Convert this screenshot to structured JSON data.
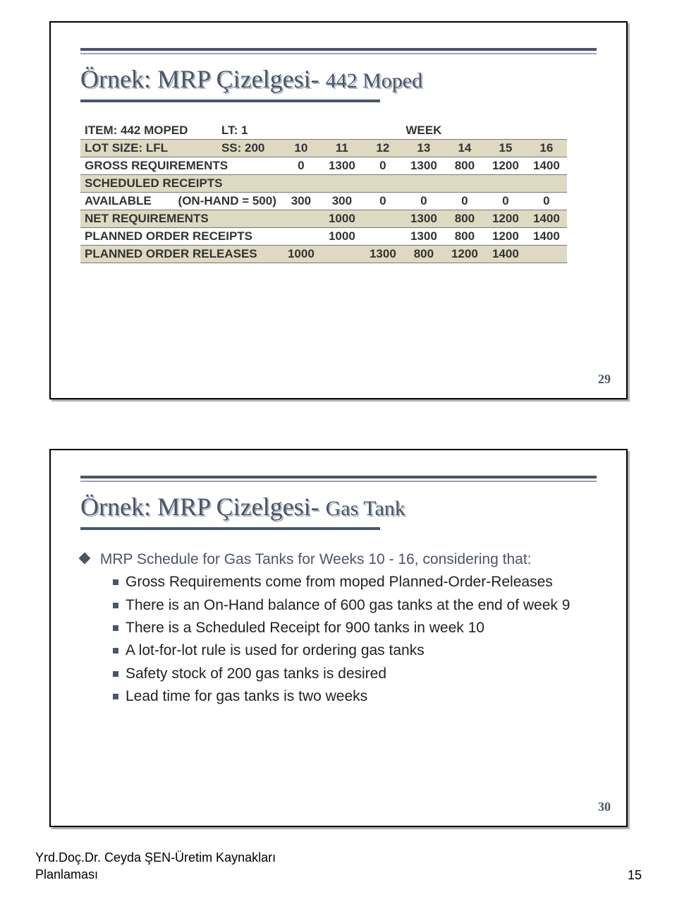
{
  "page": {
    "footer_author": "Yrd.Doç.Dr. Ceyda ŞEN-Üretim Kaynakları",
    "footer_line2": "Planlaması",
    "page_number": "15"
  },
  "slide1": {
    "title_main": "Örnek: MRP Çizelgesi-",
    "title_sub": "442 Moped",
    "slide_num": "29",
    "info": {
      "item_label": "ITEM:  442 MOPED",
      "lt_label": "LT:  1",
      "lot_label": "LOT SIZE:  LFL",
      "ss_label": "SS:  200",
      "week_label": "WEEK"
    },
    "table": {
      "weeks": [
        "10",
        "11",
        "12",
        "13",
        "14",
        "15",
        "16"
      ],
      "rows": [
        {
          "label": "GROSS REQUIREMENTS",
          "cells": [
            "0",
            "1300",
            "0",
            "1300",
            "800",
            "1200",
            "1400"
          ]
        },
        {
          "label": "SCHEDULED RECEIPTS",
          "cells": [
            "",
            "",
            "",
            "",
            "",
            "",
            ""
          ]
        },
        {
          "label": "AVAILABLE        (ON-HAND = 500)",
          "cells": [
            "300",
            "300",
            "0",
            "0",
            "0",
            "0",
            "0"
          ]
        },
        {
          "label": "NET REQUIREMENTS",
          "cells": [
            "",
            "1000",
            "",
            "1300",
            "800",
            "1200",
            "1400"
          ]
        },
        {
          "label": "PLANNED ORDER RECEIPTS",
          "cells": [
            "",
            "1000",
            "",
            "1300",
            "800",
            "1200",
            "1400"
          ]
        },
        {
          "label": "PLANNED ORDER RELEASES",
          "cells": [
            "1000",
            "",
            "1300",
            "800",
            "1200",
            "1400",
            ""
          ]
        }
      ],
      "row_colors": [
        "#ffffff",
        "#dedac2",
        "#ffffff",
        "#dedac2",
        "#ffffff",
        "#dedac2"
      ],
      "header_bg": "#dedac2",
      "border_color": "#777777",
      "font_size": 17
    }
  },
  "slide2": {
    "title_main": "Örnek: MRP Çizelgesi-",
    "title_sub": "Gas Tank",
    "slide_num": "30",
    "lead": "MRP Schedule for Gas Tanks for Weeks 10 - 16, considering that:",
    "bullets": [
      "Gross Requirements come from moped Planned-Order-Releases",
      "There is an On-Hand balance of 600 gas tanks at the end of week 9",
      "There is a Scheduled Receipt for 900 tanks in week 10",
      "A lot-for-lot rule is used for ordering gas tanks",
      "Safety stock of 200 gas tanks is desired",
      "Lead time for gas tanks is two weeks"
    ],
    "colors": {
      "accent": "#4a5568",
      "text": "#222222"
    }
  }
}
